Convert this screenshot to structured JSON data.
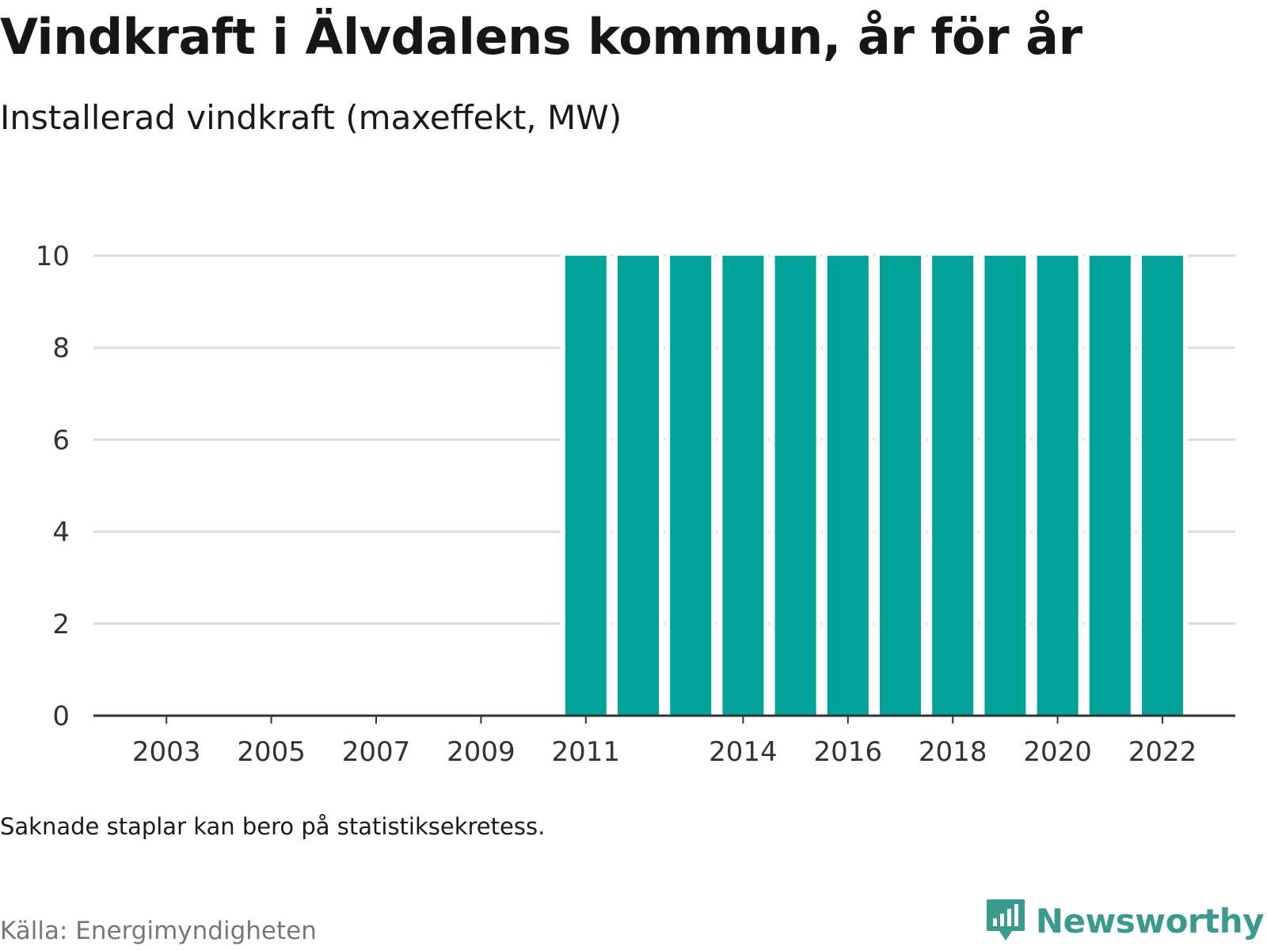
{
  "title": "Vindkraft i Älvdalens kommun, år för år",
  "subtitle": "Installerad vindkraft (maxeffekt, MW)",
  "note": "Saknade staplar kan bero på statistiksekretess.",
  "source": "Källa: Energimyndigheten",
  "brand": {
    "name": "Newsworthy",
    "icon": "bar-chart-speech-bubble-icon"
  },
  "colors": {
    "bar": "#00a39a",
    "grid": "#dcdcdc",
    "axis": "#333333",
    "brand": "#3a9a8e"
  },
  "chart_data": {
    "type": "bar",
    "categories": [
      2002,
      2003,
      2004,
      2005,
      2006,
      2007,
      2008,
      2009,
      2010,
      2011,
      2012,
      2013,
      2014,
      2015,
      2016,
      2017,
      2018,
      2019,
      2020,
      2021,
      2022
    ],
    "values": [
      null,
      null,
      null,
      null,
      null,
      null,
      null,
      null,
      null,
      10,
      10,
      10,
      10,
      10,
      10,
      10,
      10,
      10,
      10,
      10,
      10
    ],
    "xticks": [
      "2003",
      "2005",
      "2007",
      "2009",
      "2011",
      "2014",
      "2016",
      "2018",
      "2020",
      "2022"
    ],
    "yticks": [
      0,
      2,
      4,
      6,
      8,
      10
    ],
    "ylim": [
      0,
      10
    ],
    "grid": true
  }
}
